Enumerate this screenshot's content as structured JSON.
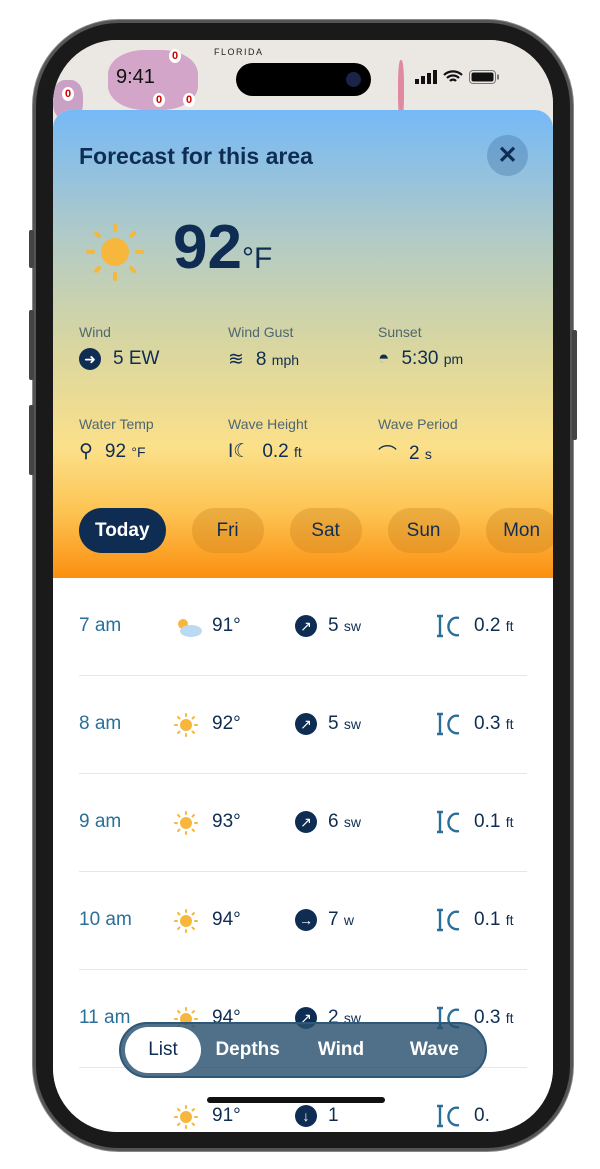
{
  "status": {
    "time": "9:41"
  },
  "map": {
    "label": "FLORIDA",
    "markers": [
      "0",
      "0",
      "0",
      "0"
    ]
  },
  "forecast": {
    "title": "Forecast for this area",
    "close_icon": "close-icon",
    "temperature": "92",
    "temp_unit": "°F",
    "stats": [
      {
        "label": "Wind",
        "value": "5 EW",
        "unit": "",
        "icon": "wind-direction-icon"
      },
      {
        "label": "Wind Gust",
        "value": "8",
        "unit": "mph",
        "icon": "wind-gust-icon"
      },
      {
        "label": "Sunset",
        "value": "5:30",
        "unit": "pm",
        "icon": "sunset-icon"
      },
      {
        "label": "Water Temp",
        "value": "92",
        "unit": "°F",
        "icon": "water-temp-icon"
      },
      {
        "label": "Wave Height",
        "value": "0.2",
        "unit": "ft",
        "icon": "wave-height-icon"
      },
      {
        "label": "Wave Period",
        "value": "2",
        "unit": "s",
        "icon": "wave-period-icon"
      }
    ]
  },
  "days": [
    "Today",
    "Fri",
    "Sat",
    "Sun",
    "Mon"
  ],
  "hourly": [
    {
      "time": "7 am",
      "icon": "partly-cloudy",
      "temp": "91°",
      "wind_dir": "↗",
      "wind": "5",
      "wind_unit": "sw",
      "wave": "0.2",
      "wave_unit": "ft"
    },
    {
      "time": "8 am",
      "icon": "sun",
      "temp": "92°",
      "wind_dir": "↗",
      "wind": "5",
      "wind_unit": "sw",
      "wave": "0.3",
      "wave_unit": "ft"
    },
    {
      "time": "9 am",
      "icon": "sun",
      "temp": "93°",
      "wind_dir": "↗",
      "wind": "6",
      "wind_unit": "sw",
      "wave": "0.1",
      "wave_unit": "ft"
    },
    {
      "time": "10 am",
      "icon": "sun",
      "temp": "94°",
      "wind_dir": "→",
      "wind": "7",
      "wind_unit": "w",
      "wave": "0.1",
      "wave_unit": "ft"
    },
    {
      "time": "11 am",
      "icon": "sun",
      "temp": "94°",
      "wind_dir": "↗",
      "wind": "2",
      "wind_unit": "sw",
      "wave": "0.3",
      "wave_unit": "ft"
    },
    {
      "time": "",
      "icon": "sun",
      "temp": "91°",
      "wind_dir": "↓",
      "wind": "1",
      "wind_unit": "",
      "wave": "0.",
      "wave_unit": ""
    }
  ],
  "views": [
    "List",
    "Depths",
    "Wind",
    "Wave"
  ],
  "colors": {
    "navy": "#0f2d52",
    "time_blue": "#2a6f9a",
    "wave_blue": "#2a6f9a",
    "sun": "#f6b73c"
  }
}
